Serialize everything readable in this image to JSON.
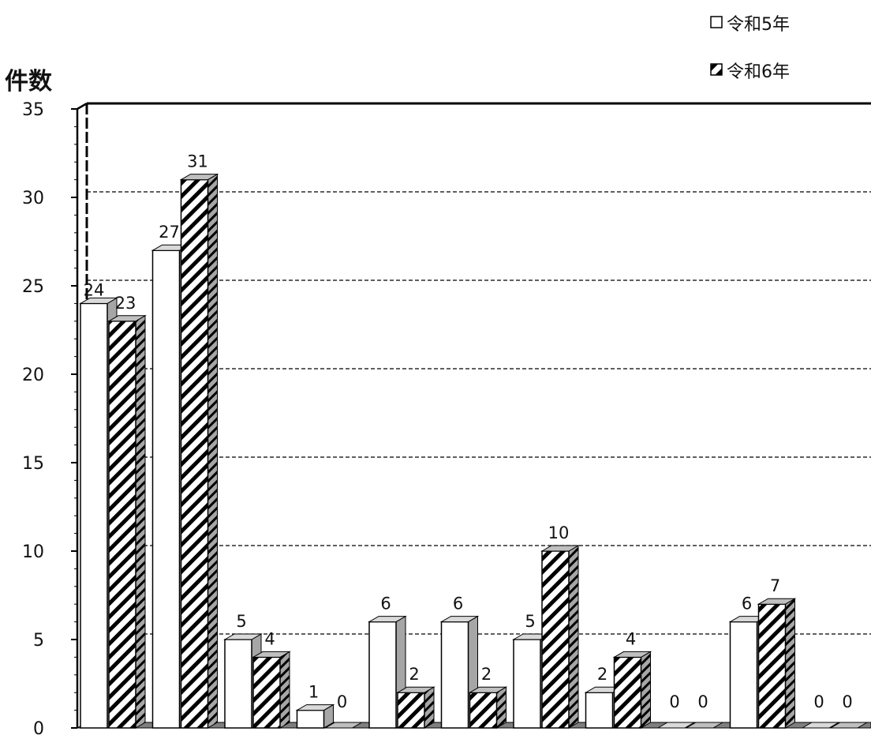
{
  "chart_data": {
    "type": "bar",
    "ylabel": "件数",
    "ylim": [
      0,
      35
    ],
    "yticks": [
      0,
      5,
      10,
      15,
      20,
      25,
      30,
      35
    ],
    "grid": true,
    "legend_position": "top-right",
    "series": [
      {
        "name": "令和5年",
        "fill": "#ffffff",
        "pattern": "none",
        "values": [
          24,
          27,
          5,
          1,
          6,
          6,
          5,
          2,
          0,
          6,
          0
        ]
      },
      {
        "name": "令和6年",
        "fill": "#ffffff",
        "pattern": "diagonal-hatch",
        "values": [
          23,
          31,
          4,
          0,
          2,
          2,
          10,
          4,
          0,
          7,
          0
        ]
      }
    ],
    "data_labels": [
      [
        "24",
        "27",
        "5",
        "1",
        "6",
        "6",
        "5",
        "2",
        "0",
        "6",
        "0"
      ],
      [
        "23",
        "31",
        "4",
        "0",
        "2",
        "2",
        "10",
        "4",
        "0",
        "7",
        "0"
      ]
    ]
  },
  "colors": {
    "axis": "#000000",
    "grid": "#000000",
    "bar_side": "#a6a6a6",
    "bar_top": "#d9d9d9",
    "hatch": "#000000"
  }
}
